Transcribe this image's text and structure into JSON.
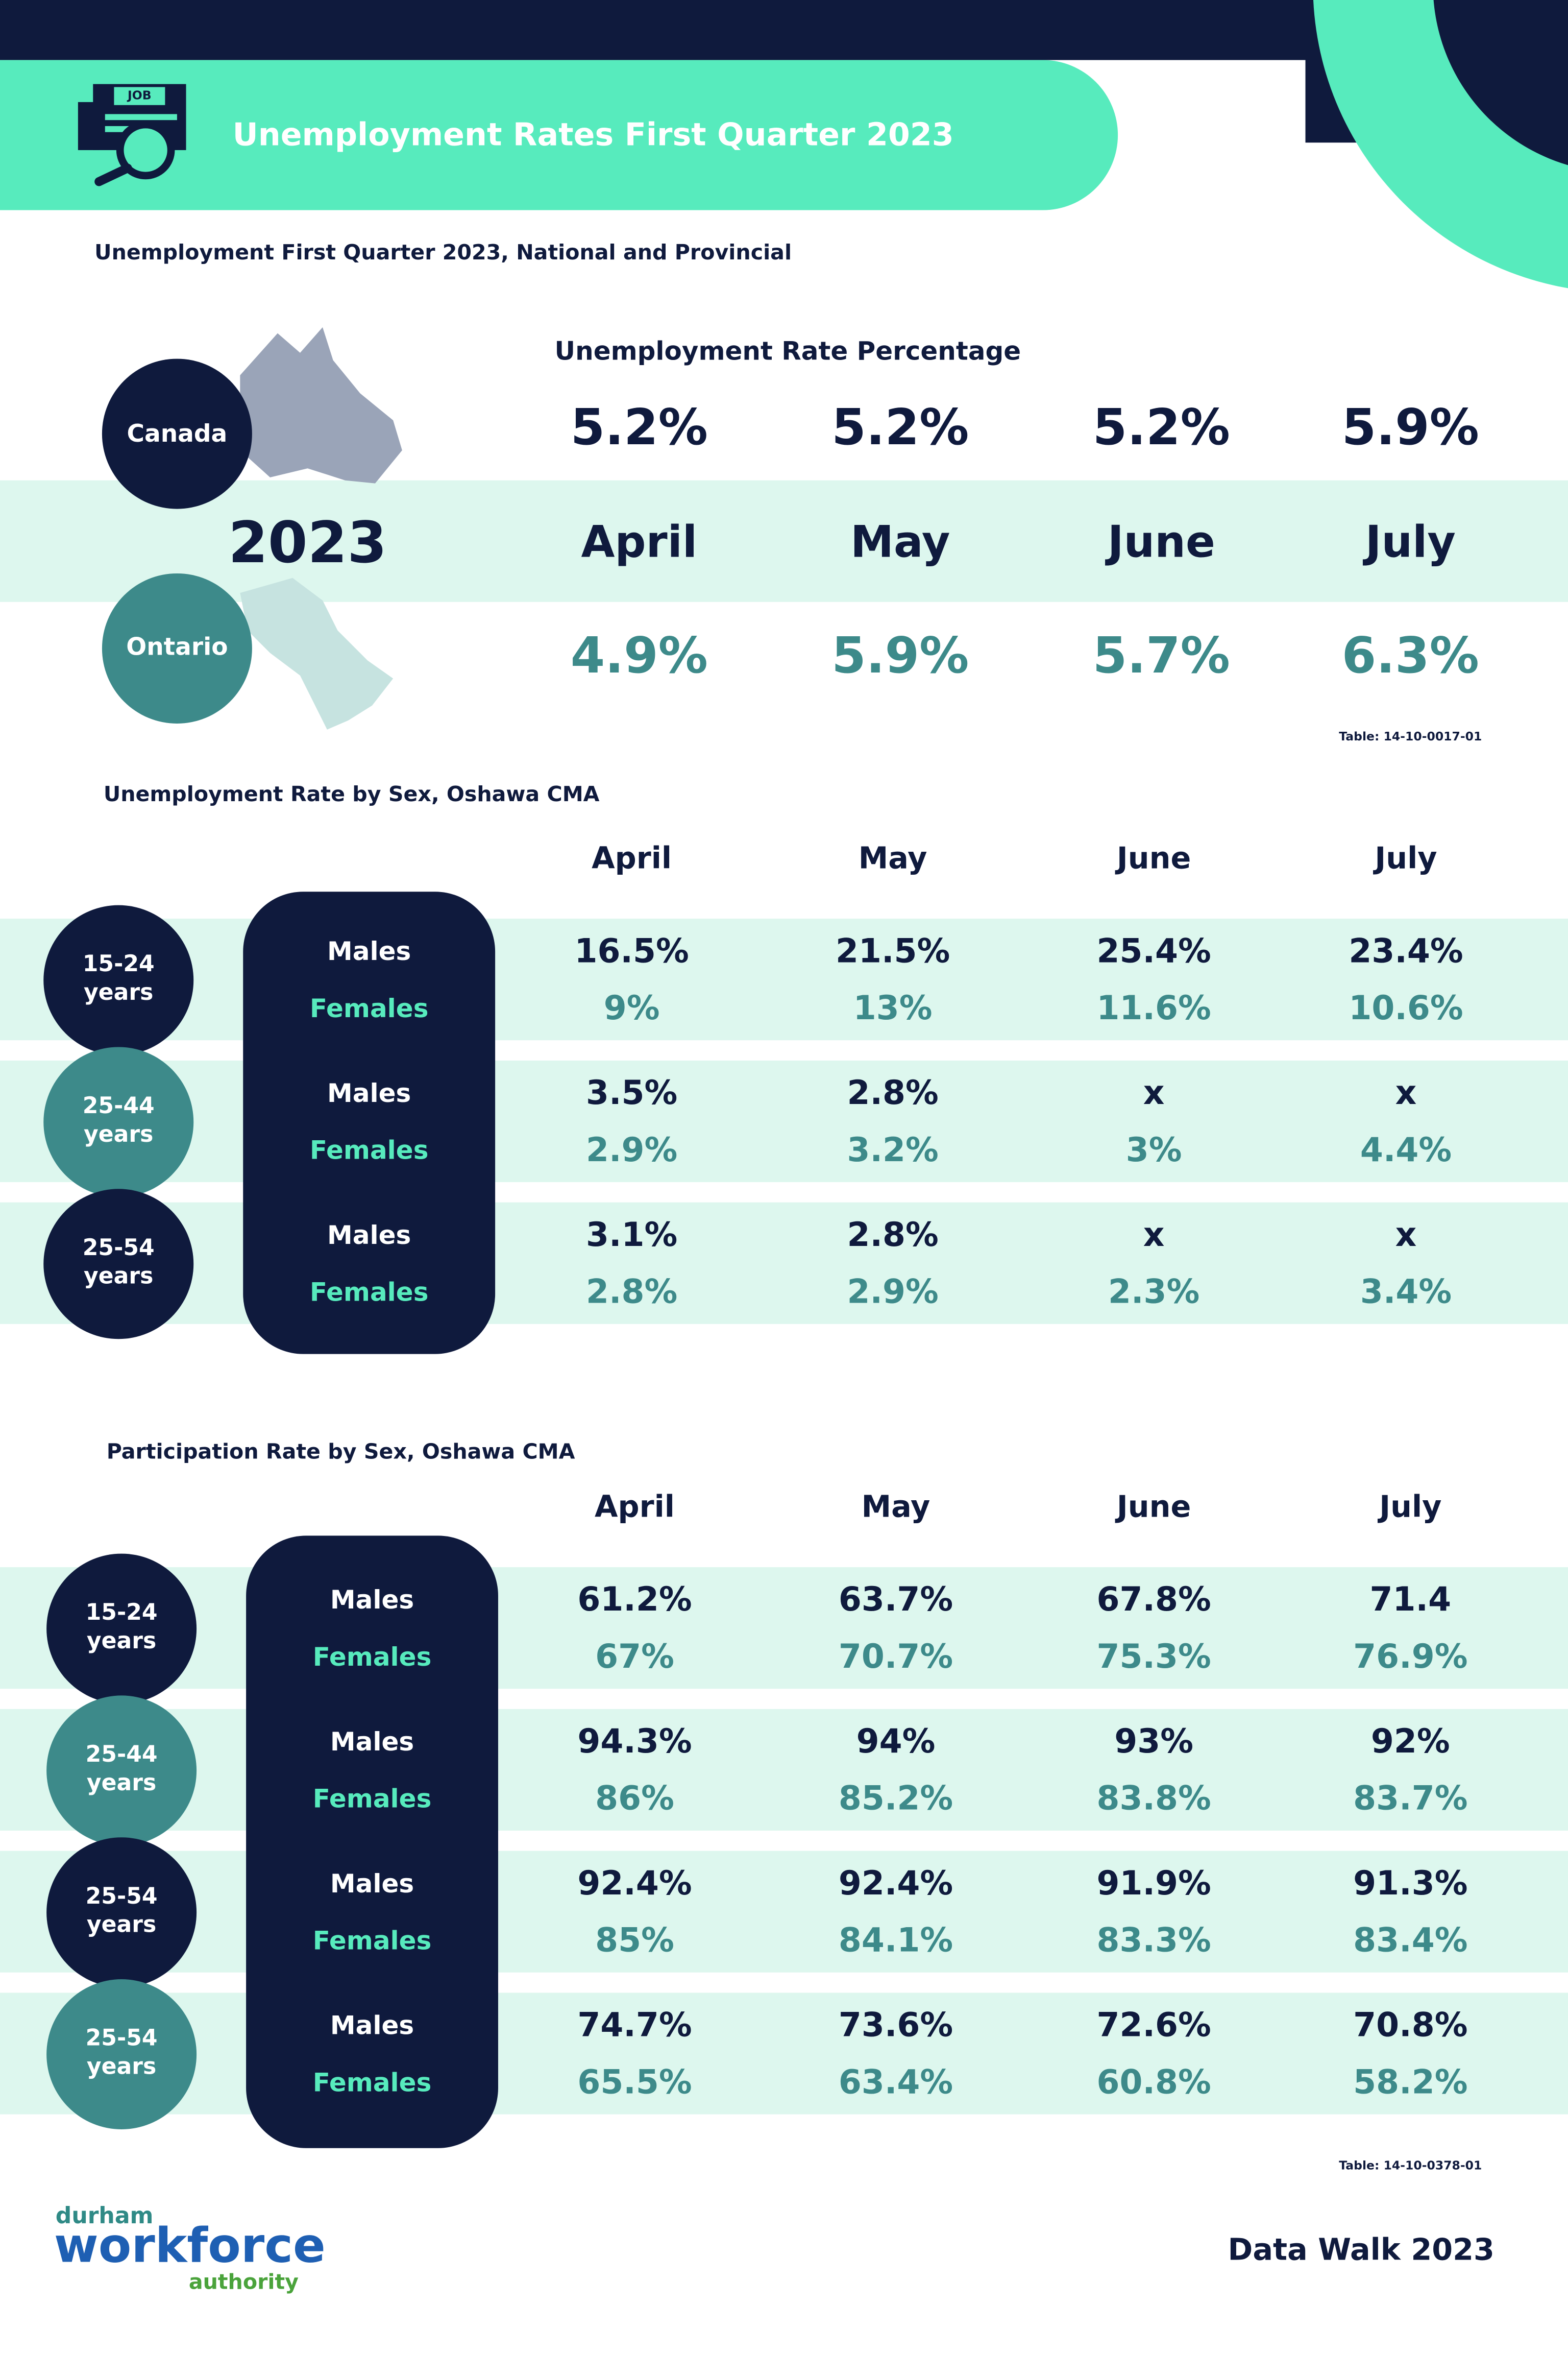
{
  "header": {
    "icon_label": "JOB",
    "title": "Unemployment Rates First Quarter 2023"
  },
  "national": {
    "title": "Unemployment First Quarter 2023, National and Provincial",
    "subtitle": "Unemployment Rate Percentage",
    "year": "2023",
    "months": [
      "April",
      "May",
      "June",
      "July"
    ],
    "canada": {
      "label": "Canada",
      "values": [
        "5.2%",
        "5.2%",
        "5.2%",
        "5.9%"
      ]
    },
    "ontario": {
      "label": "Ontario",
      "values": [
        "4.9%",
        "5.9%",
        "5.7%",
        "6.3%"
      ]
    },
    "source": "Table: 14-10-0017-01"
  },
  "unemployment": {
    "title": "Unemployment Rate by Sex, Oshawa CMA",
    "months": [
      "April",
      "May",
      "June",
      "July"
    ],
    "groups": [
      {
        "age": [
          "15-24",
          "years"
        ],
        "rows": [
          {
            "label": "Males",
            "values": [
              "16.5%",
              "21.5%",
              "25.4%",
              "23.4%"
            ]
          },
          {
            "label": "Females",
            "values": [
              "9%",
              "13%",
              "11.6%",
              "10.6%"
            ]
          }
        ]
      },
      {
        "age": [
          "25-44",
          "years"
        ],
        "rows": [
          {
            "label": "Males",
            "values": [
              "3.5%",
              "2.8%",
              "x",
              "x"
            ]
          },
          {
            "label": "Females",
            "values": [
              "2.9%",
              "3.2%",
              "3%",
              "4.4%"
            ]
          }
        ]
      },
      {
        "age": [
          "25-54",
          "years"
        ],
        "rows": [
          {
            "label": "Males",
            "values": [
              "3.1%",
              "2.8%",
              "x",
              "x"
            ]
          },
          {
            "label": "Females",
            "values": [
              "2.8%",
              "2.9%",
              "2.3%",
              "3.4%"
            ]
          }
        ]
      }
    ]
  },
  "participation": {
    "title": "Participation Rate by Sex, Oshawa CMA",
    "months": [
      "April",
      "May",
      "June",
      "July"
    ],
    "groups": [
      {
        "age": [
          "15-24",
          "years"
        ],
        "rows": [
          {
            "label": "Males",
            "values": [
              "61.2%",
              "63.7%",
              "67.8%",
              "71.4"
            ]
          },
          {
            "label": "Females",
            "values": [
              "67%",
              "70.7%",
              "75.3%",
              "76.9%"
            ]
          }
        ]
      },
      {
        "age": [
          "25-44",
          "years"
        ],
        "rows": [
          {
            "label": "Males",
            "values": [
              "94.3%",
              "94%",
              "93%",
              "92%"
            ]
          },
          {
            "label": "Females",
            "values": [
              "86%",
              "85.2%",
              "83.8%",
              "83.7%"
            ]
          }
        ]
      },
      {
        "age": [
          "25-54",
          "years"
        ],
        "rows": [
          {
            "label": "Males",
            "values": [
              "92.4%",
              "92.4%",
              "91.9%",
              "91.3%"
            ]
          },
          {
            "label": "Females",
            "values": [
              "85%",
              "84.1%",
              "83.3%",
              "83.4%"
            ]
          }
        ]
      },
      {
        "age": [
          "25-54",
          "years"
        ],
        "rows": [
          {
            "label": "Males",
            "values": [
              "74.7%",
              "73.6%",
              "72.6%",
              "70.8%"
            ]
          },
          {
            "label": "Females",
            "values": [
              "65.5%",
              "63.4%",
              "60.8%",
              "58.2%"
            ]
          }
        ]
      }
    ],
    "source": "Table: 14-10-0378-01"
  },
  "footer": {
    "logo": [
      "durham",
      "workforce",
      "authority"
    ],
    "note": "Data Walk 2023"
  }
}
